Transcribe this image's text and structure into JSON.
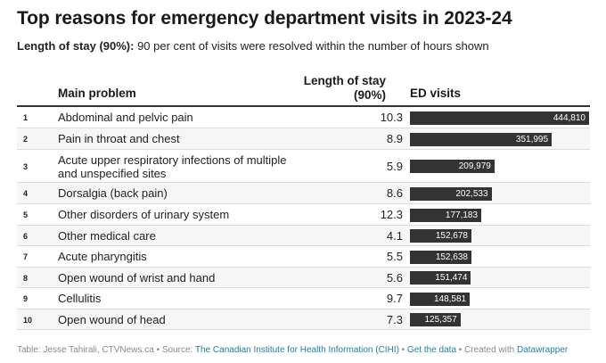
{
  "title": "Top reasons for emergency department visits in 2023-24",
  "subtitle": {
    "label": "Length of stay (90%):",
    "text": " 90 per cent of visits were resolved within the number of hours shown"
  },
  "columns": {
    "main_problem": "Main problem",
    "length_of_stay_line1": "Length of stay",
    "length_of_stay_line2": "(90%)",
    "ed_visits": "ED visits"
  },
  "chart_data": {
    "type": "table",
    "columns": [
      "",
      "Main problem",
      "Length of stay (90%)",
      "ED visits"
    ],
    "bar_column": "ED visits",
    "bar_max": 444810,
    "bar_color": "#333333",
    "rows": [
      {
        "rank": "1",
        "problem": "Abdominal and pelvic pain",
        "los": "10.3",
        "visits": 444810,
        "visits_label": "444,810"
      },
      {
        "rank": "2",
        "problem": "Pain in throat and chest",
        "los": "8.9",
        "visits": 351995,
        "visits_label": "351,995"
      },
      {
        "rank": "3",
        "problem": "Acute upper respiratory infections of multiple and unspecified sites",
        "los": "5.9",
        "visits": 209979,
        "visits_label": "209,979"
      },
      {
        "rank": "4",
        "problem": "Dorsalgia (back pain)",
        "los": "8.6",
        "visits": 202533,
        "visits_label": "202,533"
      },
      {
        "rank": "5",
        "problem": "Other disorders of urinary system",
        "los": "12.3",
        "visits": 177183,
        "visits_label": "177,183"
      },
      {
        "rank": "6",
        "problem": "Other medical care",
        "los": "4.1",
        "visits": 152678,
        "visits_label": "152,678"
      },
      {
        "rank": "7",
        "problem": "Acute pharyngitis",
        "los": "5.5",
        "visits": 152638,
        "visits_label": "152,638"
      },
      {
        "rank": "8",
        "problem": "Open wound of wrist and hand",
        "los": "5.6",
        "visits": 151474,
        "visits_label": "151,474"
      },
      {
        "rank": "9",
        "problem": "Cellulitis",
        "los": "9.7",
        "visits": 148581,
        "visits_label": "148,581"
      },
      {
        "rank": "10",
        "problem": "Open wound of head",
        "los": "7.3",
        "visits": 125357,
        "visits_label": "125,357"
      }
    ]
  },
  "footer": {
    "credit": "Table: Jesse Tahirali, CTVNews.ca",
    "source_label": "Source:",
    "source_link": "The Canadian Institute for Health Information (CIHI)",
    "get_data": "Get the data",
    "created_with": "Created with",
    "datawrapper": "Datawrapper",
    "sep": " • "
  }
}
